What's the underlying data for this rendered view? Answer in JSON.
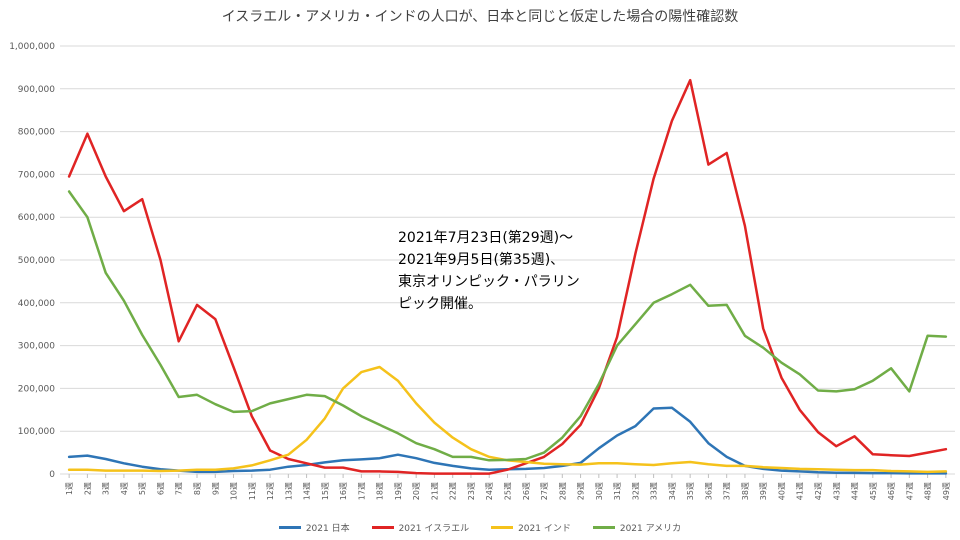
{
  "chart_data": {
    "type": "line",
    "title": "イスラエル・アメリカ・インドの人口が、日本と同じと仮定した場合の陽性確認数",
    "xlabel": "",
    "ylabel": "",
    "ylim": [
      0,
      1000000
    ],
    "yticks": [
      0,
      100000,
      200000,
      300000,
      400000,
      500000,
      600000,
      700000,
      800000,
      900000,
      1000000
    ],
    "ytick_labels": [
      "0",
      "100,000",
      "200,000",
      "300,000",
      "400,000",
      "500,000",
      "600,000",
      "700,000",
      "800,000",
      "900,000",
      "1,000,000"
    ],
    "grid": true,
    "legend_position": "bottom",
    "categories": [
      "1週",
      "2週",
      "3週",
      "4週",
      "5週",
      "6週",
      "7週",
      "8週",
      "9週",
      "10週",
      "11週",
      "12週",
      "13週",
      "14週",
      "15週",
      "16週",
      "17週",
      "18週",
      "19週",
      "20週",
      "21週",
      "22週",
      "23週",
      "24週",
      "25週",
      "26週",
      "27週",
      "28週",
      "29週",
      "30週",
      "31週",
      "32週",
      "33週",
      "34週",
      "35週",
      "36週",
      "37週",
      "38週",
      "39週",
      "40週",
      "41週",
      "42週",
      "43週",
      "44週",
      "45週",
      "46週",
      "47週",
      "48週",
      "49週"
    ],
    "series": [
      {
        "name": "2021 日本",
        "color": "#2e75b6",
        "values": [
          40000,
          43000,
          35000,
          25000,
          17000,
          11000,
          8000,
          5000,
          5000,
          7000,
          8000,
          10000,
          17000,
          21000,
          27000,
          32000,
          34000,
          37000,
          45000,
          37000,
          26000,
          19000,
          13000,
          10000,
          11000,
          12000,
          14000,
          19000,
          26000,
          60000,
          90000,
          112000,
          153000,
          155000,
          122000,
          72000,
          40000,
          19000,
          12000,
          8000,
          6000,
          4000,
          3000,
          2500,
          2000,
          2000,
          1500,
          1500,
          1500
        ]
      },
      {
        "name": "2021 イスラエル",
        "color": "#e02424",
        "values": [
          695000,
          795000,
          695000,
          614000,
          642000,
          500000,
          310000,
          395000,
          362000,
          250000,
          135000,
          55000,
          35000,
          25000,
          15000,
          15000,
          6000,
          6000,
          5000,
          2000,
          1000,
          1000,
          1000,
          1000,
          10000,
          25000,
          40000,
          70000,
          115000,
          200000,
          320000,
          515000,
          690000,
          825000,
          920000,
          723000,
          750000,
          580000,
          340000,
          225000,
          150000,
          98000,
          65000,
          88000,
          46000,
          44000,
          42000,
          50000,
          58000
        ]
      },
      {
        "name": "2021 インド",
        "color": "#f5c21b",
        "values": [
          10000,
          10000,
          8000,
          8000,
          8000,
          7000,
          8000,
          10000,
          10000,
          13000,
          20000,
          32000,
          45000,
          80000,
          130000,
          200000,
          238000,
          250000,
          218000,
          165000,
          120000,
          85000,
          58000,
          40000,
          32000,
          28000,
          24000,
          23000,
          22000,
          25000,
          25000,
          23000,
          21000,
          25000,
          28000,
          23000,
          19000,
          19000,
          16000,
          14000,
          12000,
          11000,
          10000,
          9000,
          9000,
          7000,
          6000,
          5000,
          6000
        ]
      },
      {
        "name": "2021 アメリカ",
        "color": "#70ad47",
        "values": [
          660000,
          600000,
          470000,
          405000,
          325000,
          255000,
          180000,
          185000,
          163000,
          145000,
          147000,
          165000,
          175000,
          185000,
          182000,
          160000,
          135000,
          115000,
          95000,
          72000,
          58000,
          40000,
          40000,
          32000,
          33000,
          35000,
          50000,
          85000,
          135000,
          210000,
          300000,
          350000,
          400000,
          420000,
          442000,
          393000,
          395000,
          323000,
          295000,
          260000,
          233000,
          195000,
          193000,
          198000,
          218000,
          247000,
          193000,
          323000,
          321000
        ]
      }
    ]
  },
  "annotation": "2021年7月23日(第29週)～\n2021年9月5日(第35週)、\n東京オリンピック・パラリン\nピック開催。"
}
